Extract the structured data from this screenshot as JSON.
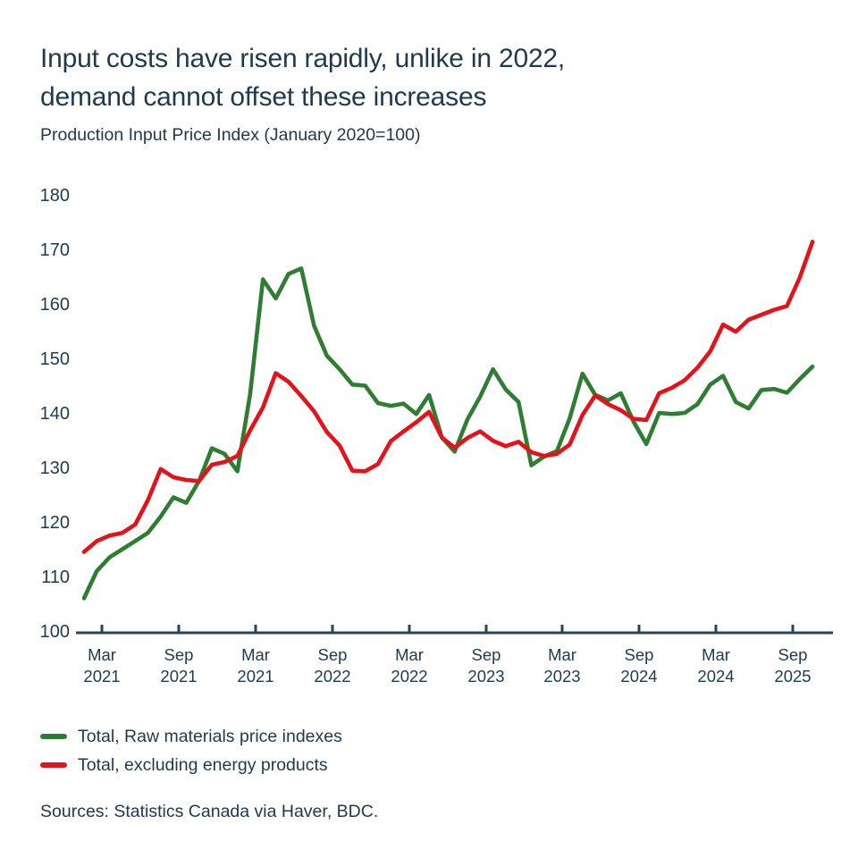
{
  "header": {
    "title_line1": "Input costs have risen rapidly, unlike in 2022,",
    "title_line2": "demand cannot offset these increases",
    "subtitle": "Production Input Price Index (January 2020=100)"
  },
  "source_note": "Sources: Statistics Canada via Haver, BDC.",
  "colors": {
    "green_series": "#2e7d32",
    "red_series": "#e4131b",
    "axis": "#2b4257",
    "text": "#24384a",
    "title_text": "#1e3a4f"
  },
  "legend": [
    {
      "label": "Total, Raw materials price indexes",
      "color": "#2e7d32"
    },
    {
      "label": "Total, excluding energy products",
      "color": "#e4131b"
    }
  ],
  "chart_data": {
    "type": "line",
    "title": "Input costs have risen rapidly, unlike in 2022, demand cannot offset these increases",
    "subtitle": "Production Input Price Index (January 2020=100)",
    "xlabel": "",
    "ylabel": "Index (January 2020=100)",
    "ylim": [
      100,
      180
    ],
    "y_ticks": [
      100,
      110,
      120,
      130,
      140,
      150,
      160,
      170,
      180
    ],
    "grid": false,
    "legend_position": "bottom-left",
    "x_start": "2021-01",
    "x_end": "2025-10",
    "x_interval": "month",
    "x_tick_labels": [
      {
        "month": "Mar",
        "year": "2021"
      },
      {
        "month": "Sep",
        "year": "2021"
      },
      {
        "month": "Mar",
        "year": "2021"
      },
      {
        "month": "Sep",
        "year": "2022"
      },
      {
        "month": "Mar",
        "year": "2022"
      },
      {
        "month": "Sep",
        "year": "2023"
      },
      {
        "month": "Mar",
        "year": "2023"
      },
      {
        "month": "Sep",
        "year": "2024"
      },
      {
        "month": "Mar",
        "year": "2024"
      },
      {
        "month": "Sep",
        "year": "2025"
      }
    ],
    "series": [
      {
        "name": "Total, Raw materials price indexes",
        "color": "#2e7d32",
        "values": [
          106,
          111,
          113.5,
          115,
          116.5,
          118,
          121,
          124.5,
          123.5,
          127.5,
          133.5,
          132.5,
          129.3,
          143.5,
          164.5,
          161,
          165.5,
          166.5,
          156,
          150.5,
          148,
          145.2,
          145,
          141.8,
          141.3,
          141.7,
          139.8,
          143.3,
          135.5,
          132.9,
          138.8,
          143,
          148,
          144.3,
          142,
          130.4,
          132,
          133,
          139,
          147.2,
          143.3,
          142.3,
          143.6,
          138.4,
          134.3,
          140,
          139.8,
          140,
          141.6,
          145.2,
          146.8,
          142,
          140.8,
          144.2,
          144.4,
          143.7,
          146.2,
          148.5
        ]
      },
      {
        "name": "Total, excluding energy products",
        "color": "#e4131b",
        "values": [
          114.5,
          116.5,
          117.5,
          118,
          119.5,
          124,
          129.7,
          128.2,
          127.7,
          127.5,
          130.5,
          131,
          132.1,
          136.8,
          141,
          147.3,
          145.7,
          143.1,
          140.3,
          136.5,
          134,
          129.4,
          129.3,
          130.6,
          134.8,
          136.6,
          138.3,
          140.2,
          135.5,
          133.6,
          135.4,
          136.6,
          134.9,
          133.9,
          134.7,
          132.8,
          132.1,
          132.5,
          134.2,
          139.6,
          143.2,
          141.6,
          140.5,
          138.9,
          138.7,
          143.6,
          144.6,
          146,
          148.3,
          151.3,
          156.2,
          154.9,
          157.1,
          158,
          158.9,
          159.6,
          164.8,
          171.4
        ]
      }
    ]
  }
}
